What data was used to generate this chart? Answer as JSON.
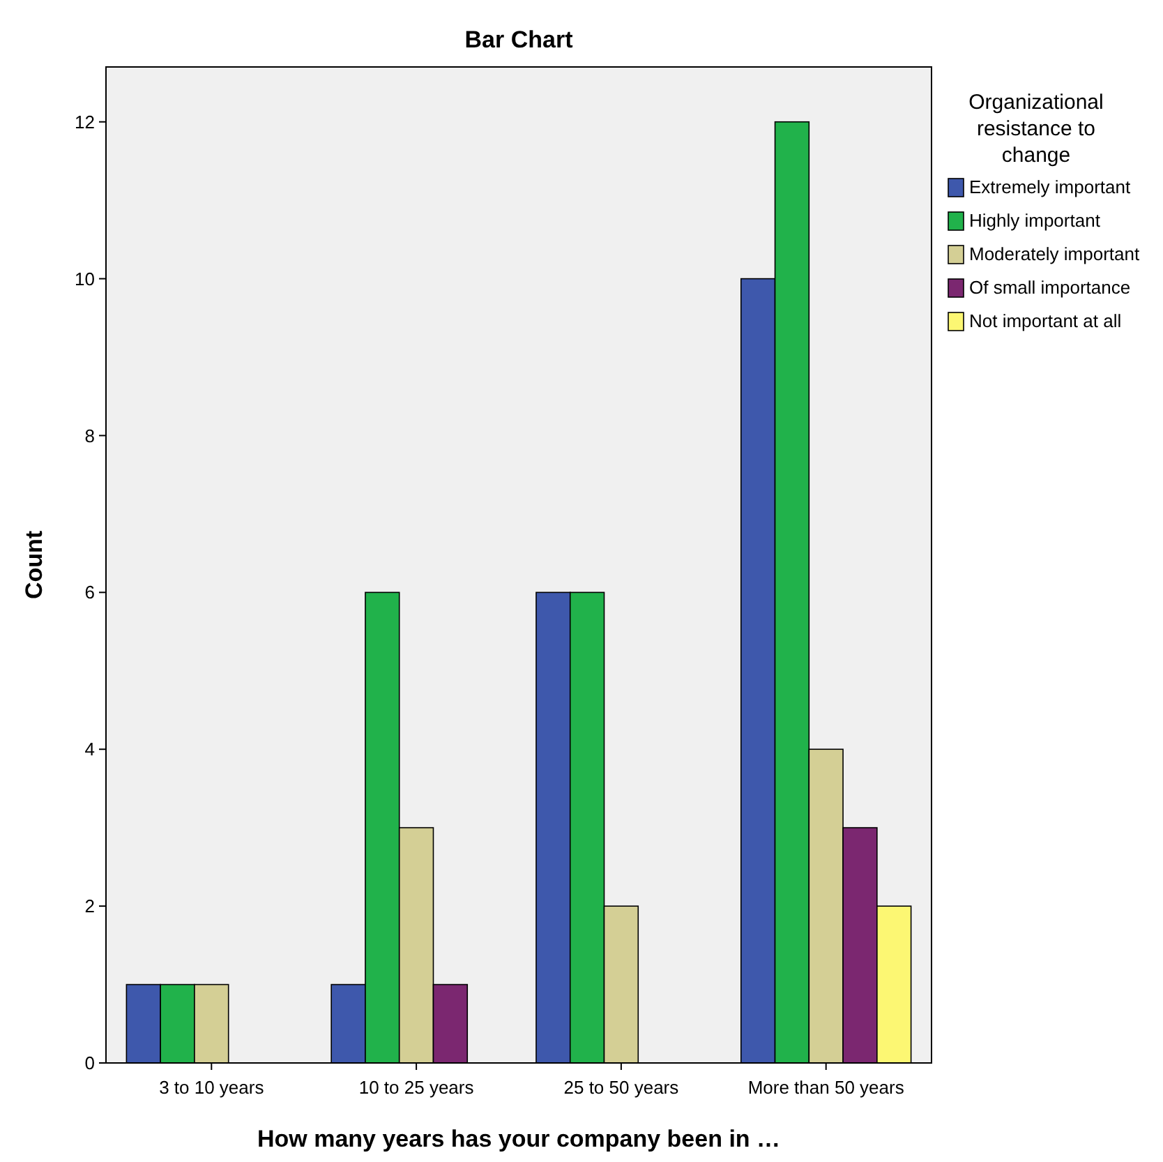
{
  "chart_data": {
    "type": "bar",
    "title": "Bar Chart",
    "xlabel": "How many years has your company been in …",
    "ylabel": "Count",
    "legend_title": "Organizational resistance to change",
    "categories": [
      "3 to 10 years",
      "10 to 25 years",
      "25 to 50 years",
      "More than 50 years"
    ],
    "series": [
      {
        "name": "Extremely important",
        "color": "#3e58ac",
        "values": [
          1,
          1,
          6,
          10
        ]
      },
      {
        "name": "Highly important",
        "color": "#21b24b",
        "values": [
          1,
          6,
          6,
          12
        ]
      },
      {
        "name": "Moderately important",
        "color": "#d4cf95",
        "values": [
          1,
          3,
          2,
          4
        ]
      },
      {
        "name": "Of small importance",
        "color": "#7b2770",
        "values": [
          null,
          1,
          null,
          3
        ]
      },
      {
        "name": "Not important at all",
        "color": "#fcf773",
        "values": [
          null,
          null,
          null,
          2
        ]
      }
    ],
    "ylim": [
      0,
      12.7
    ],
    "yticks": [
      0,
      2,
      4,
      6,
      8,
      10,
      12
    ],
    "grid": false,
    "legend": "right"
  }
}
